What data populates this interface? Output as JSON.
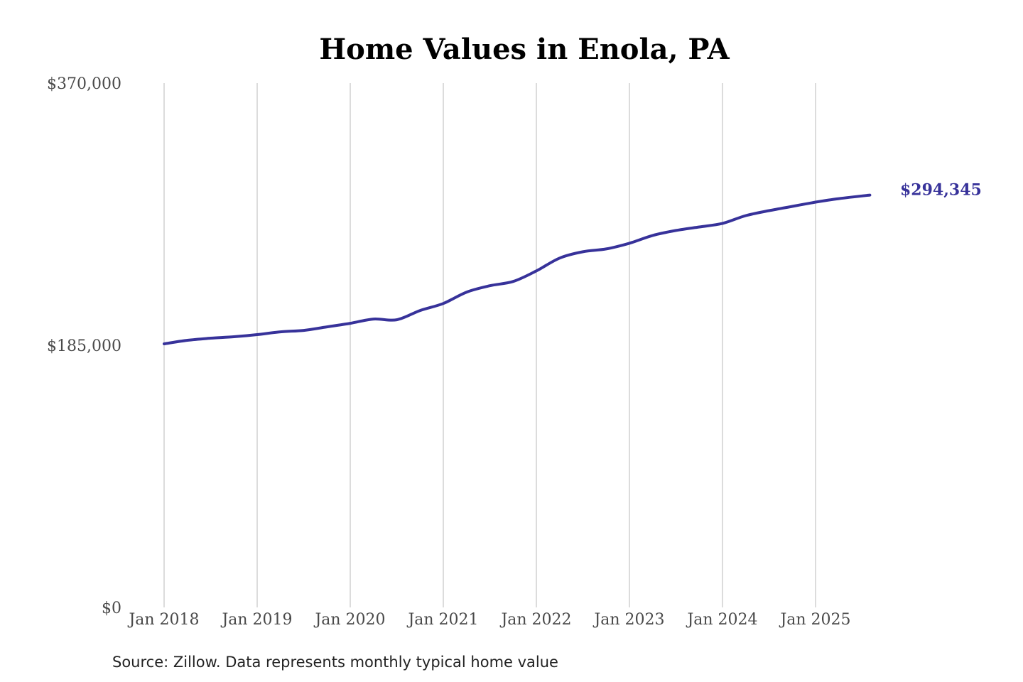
{
  "chart_data": {
    "type": "line",
    "title": "Home Values in Enola, PA",
    "xlabel": "",
    "ylabel": "",
    "ylim": [
      0,
      370000
    ],
    "y_ticks": [
      {
        "value": 0,
        "label": "$0"
      },
      {
        "value": 185000,
        "label": "$185,000"
      },
      {
        "value": 370000,
        "label": "$370,000"
      }
    ],
    "x_ticks": [
      {
        "date": "2018-01",
        "label": "Jan 2018"
      },
      {
        "date": "2019-01",
        "label": "Jan 2019"
      },
      {
        "date": "2020-01",
        "label": "Jan 2020"
      },
      {
        "date": "2021-01",
        "label": "Jan 2021"
      },
      {
        "date": "2022-01",
        "label": "Jan 2022"
      },
      {
        "date": "2023-01",
        "label": "Jan 2023"
      },
      {
        "date": "2024-01",
        "label": "Jan 2024"
      },
      {
        "date": "2025-01",
        "label": "Jan 2025"
      }
    ],
    "grid": {
      "vertical": true,
      "horizontal": false
    },
    "legend": "none",
    "line_color": "#37329a",
    "end_label": "$294,345",
    "series": [
      {
        "x": [
          "2018-01",
          "2018-04",
          "2018-07",
          "2018-10",
          "2019-01",
          "2019-04",
          "2019-07",
          "2019-10",
          "2020-01",
          "2020-04",
          "2020-07",
          "2020-10",
          "2021-01",
          "2021-04",
          "2021-07",
          "2021-10",
          "2022-01",
          "2022-04",
          "2022-07",
          "2022-10",
          "2023-01",
          "2023-04",
          "2023-07",
          "2023-10",
          "2024-01",
          "2024-04",
          "2024-07",
          "2024-10",
          "2025-01",
          "2025-04",
          "2025-08"
        ],
        "values": [
          186000,
          188500,
          190000,
          191000,
          192500,
          194500,
          195500,
          198000,
          200500,
          203500,
          203000,
          209500,
          214500,
          222500,
          227000,
          230000,
          237500,
          246500,
          251000,
          253000,
          257000,
          262500,
          266000,
          268500,
          271000,
          276500,
          280000,
          283000,
          286000,
          288500,
          291000
        ]
      }
    ],
    "source": "Source: Zillow. Data represents monthly typical home value"
  }
}
